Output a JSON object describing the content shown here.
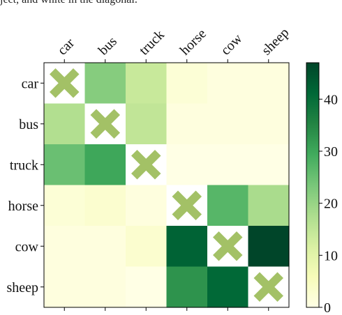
{
  "top_text": "ject, and white in the diagonal.",
  "colors": {
    "cross": "#a3c166",
    "colormap": [
      "#ffffe5",
      "#f7fcb9",
      "#d9f0a3",
      "#addd8e",
      "#78c679",
      "#41ab5d",
      "#238443",
      "#006837",
      "#004529"
    ]
  },
  "chart_data": {
    "type": "heatmap",
    "title": "",
    "xlabel": "",
    "ylabel": "",
    "x_categories": [
      "car",
      "bus",
      "truck",
      "horse",
      "cow",
      "sheep"
    ],
    "y_categories": [
      "car",
      "bus",
      "truck",
      "horse",
      "cow",
      "sheep"
    ],
    "values": [
      [
        null,
        22,
        14,
        2,
        1,
        1
      ],
      [
        17,
        null,
        15,
        1,
        1,
        1
      ],
      [
        25,
        30,
        null,
        0,
        0,
        0
      ],
      [
        2,
        3,
        1,
        null,
        27,
        18
      ],
      [
        1,
        1,
        3,
        42,
        null,
        47
      ],
      [
        1,
        1,
        0,
        33,
        41,
        null
      ]
    ],
    "diagonal_marker": "cross",
    "colorbar": {
      "min": 0,
      "max": 47,
      "ticks": [
        0,
        10,
        20,
        30,
        40
      ]
    }
  }
}
